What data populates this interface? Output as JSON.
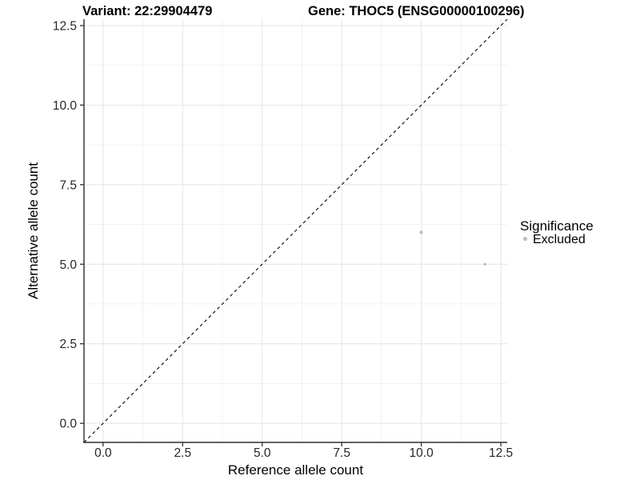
{
  "chart_data": {
    "type": "scatter",
    "title_left": "Variant: 22:29904479",
    "title_right": "Gene: THOC5 (ENSG00000100296)",
    "xlabel": "Reference allele count",
    "ylabel": "Alternative allele count",
    "xlim": [
      -0.6,
      12.7
    ],
    "ylim": [
      -0.6,
      12.7
    ],
    "tick_values": [
      0,
      2.5,
      5,
      7.5,
      10,
      12.5
    ],
    "x_tick_labels": [
      "0.0",
      "2.5",
      "5.0",
      "7.5",
      "10.0",
      "12.5"
    ],
    "y_tick_labels": [
      "0.0",
      "2.5",
      "5.0",
      "7.5",
      "10.0",
      "12.5"
    ],
    "minor_tick_values": [
      1.25,
      3.75,
      6.25,
      8.75,
      11.25
    ],
    "grid": {
      "major": true,
      "minor": true
    },
    "reference_line": {
      "equation": "y = x",
      "style": "dashed",
      "color": "#000000"
    },
    "series": [
      {
        "name": "Excluded",
        "color": "#bebebe",
        "points": [
          {
            "x": 10,
            "y": 6,
            "r": 2.2
          },
          {
            "x": 12,
            "y": 5,
            "r": 1.7
          }
        ]
      }
    ],
    "legend": {
      "title": "Significance",
      "position": "right",
      "items": [
        {
          "label": "Excluded",
          "color": "#bebebe",
          "marker": "circle"
        }
      ]
    }
  },
  "palette": {
    "background": "#ffffff",
    "grid_major": "#e4e4e4",
    "grid_minor": "#f0f0f0",
    "axis_line": "#2e2e2e",
    "tick_text": "#262626",
    "title_text": "#000000",
    "excluded_point": "#bebebe"
  }
}
